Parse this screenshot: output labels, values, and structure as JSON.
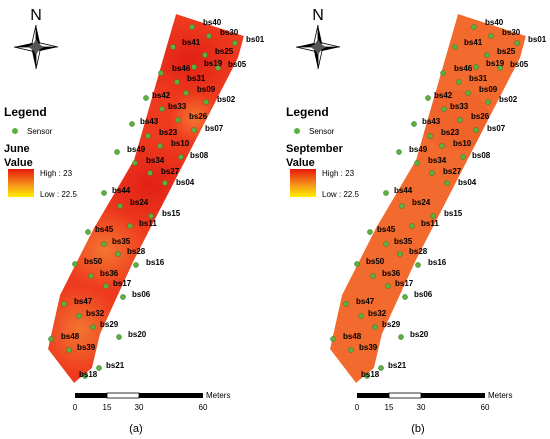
{
  "panels": [
    {
      "id": "a",
      "caption": "(a)",
      "month": "June",
      "legend_title": "Legend",
      "sensor_label": "Sensor",
      "value_label": "Value",
      "high_label": "High : 23",
      "low_label": "Low : 22.5",
      "north_label": "N",
      "scale_unit": "Meters",
      "scale_ticks": [
        "0",
        "15",
        "30",
        "60"
      ],
      "field_colors": [
        "#ee3a1e",
        "#e8321a",
        "#f04a22",
        "#f26a2e"
      ]
    },
    {
      "id": "b",
      "caption": "(b)",
      "month": "September",
      "legend_title": "Legend",
      "sensor_label": "Sensor",
      "value_label": "Value",
      "high_label": "High : 23",
      "low_label": "Low : 22.5",
      "north_label": "N",
      "scale_unit": "Meters",
      "scale_ticks": [
        "0",
        "15",
        "30",
        "60"
      ],
      "field_colors": [
        "#f26a2e",
        "#f0642c",
        "#f26a2e",
        "#f26a2e"
      ]
    }
  ],
  "sensors": [
    "bs40",
    "bs30",
    "bs01",
    "bs41",
    "bs25",
    "bs19",
    "bs05",
    "bs46",
    "bs31",
    "bs09",
    "bs02",
    "bs42",
    "bs33",
    "bs26",
    "bs07",
    "bs43",
    "bs23",
    "bs10",
    "bs08",
    "bs49",
    "bs34",
    "bs27",
    "bs04",
    "bs44",
    "bs24",
    "bs15",
    "bs11",
    "bs45",
    "bs35",
    "bs28",
    "bs16",
    "bs50",
    "bs36",
    "bs17",
    "bs06",
    "bs47",
    "bs32",
    "bs29",
    "bs20",
    "bs48",
    "bs39",
    "bs21",
    "bs18"
  ],
  "colors": {
    "sensor_dot": "#5db040",
    "gradient_high": "#e8190c",
    "gradient_low": "#ffee00",
    "scale_dark": "#000000",
    "scale_light": "#ffffff"
  }
}
